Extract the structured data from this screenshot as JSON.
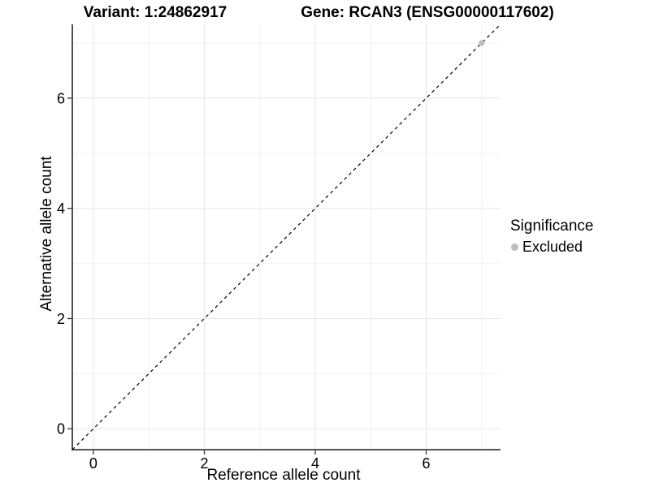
{
  "chart_data": {
    "type": "scatter",
    "title_variant": "Variant: 1:24862917",
    "title_gene": "Gene: RCAN3 (ENSG00000117602)",
    "xlabel": "Reference allele count",
    "ylabel": "Alternative allele count",
    "xlim": [
      -0.38,
      7.34
    ],
    "ylim": [
      -0.38,
      7.34
    ],
    "x_major_ticks": [
      0,
      2,
      4,
      6
    ],
    "x_minor_ticks": [
      1,
      3,
      5,
      7
    ],
    "y_major_ticks": [
      0,
      2,
      4,
      6
    ],
    "y_minor_ticks": [
      1,
      3,
      5,
      7
    ],
    "grid": "major+minor",
    "reference_line": {
      "type": "identity",
      "slope": 1,
      "intercept": 0,
      "style": "dashed",
      "color": "#000000"
    },
    "series": [
      {
        "name": "Excluded",
        "color": "#bebebe",
        "points": [
          [
            7,
            7
          ]
        ]
      }
    ],
    "legend": {
      "title": "Significance",
      "position": "right",
      "items": [
        {
          "label": "Excluded",
          "color": "#bebebe"
        }
      ]
    },
    "colors": {
      "grid_major": "#e6e6e6",
      "grid_minor": "#f0f0f0",
      "axis_line": "#3c3c3c",
      "tick": "#333333",
      "text": "#000000"
    }
  }
}
